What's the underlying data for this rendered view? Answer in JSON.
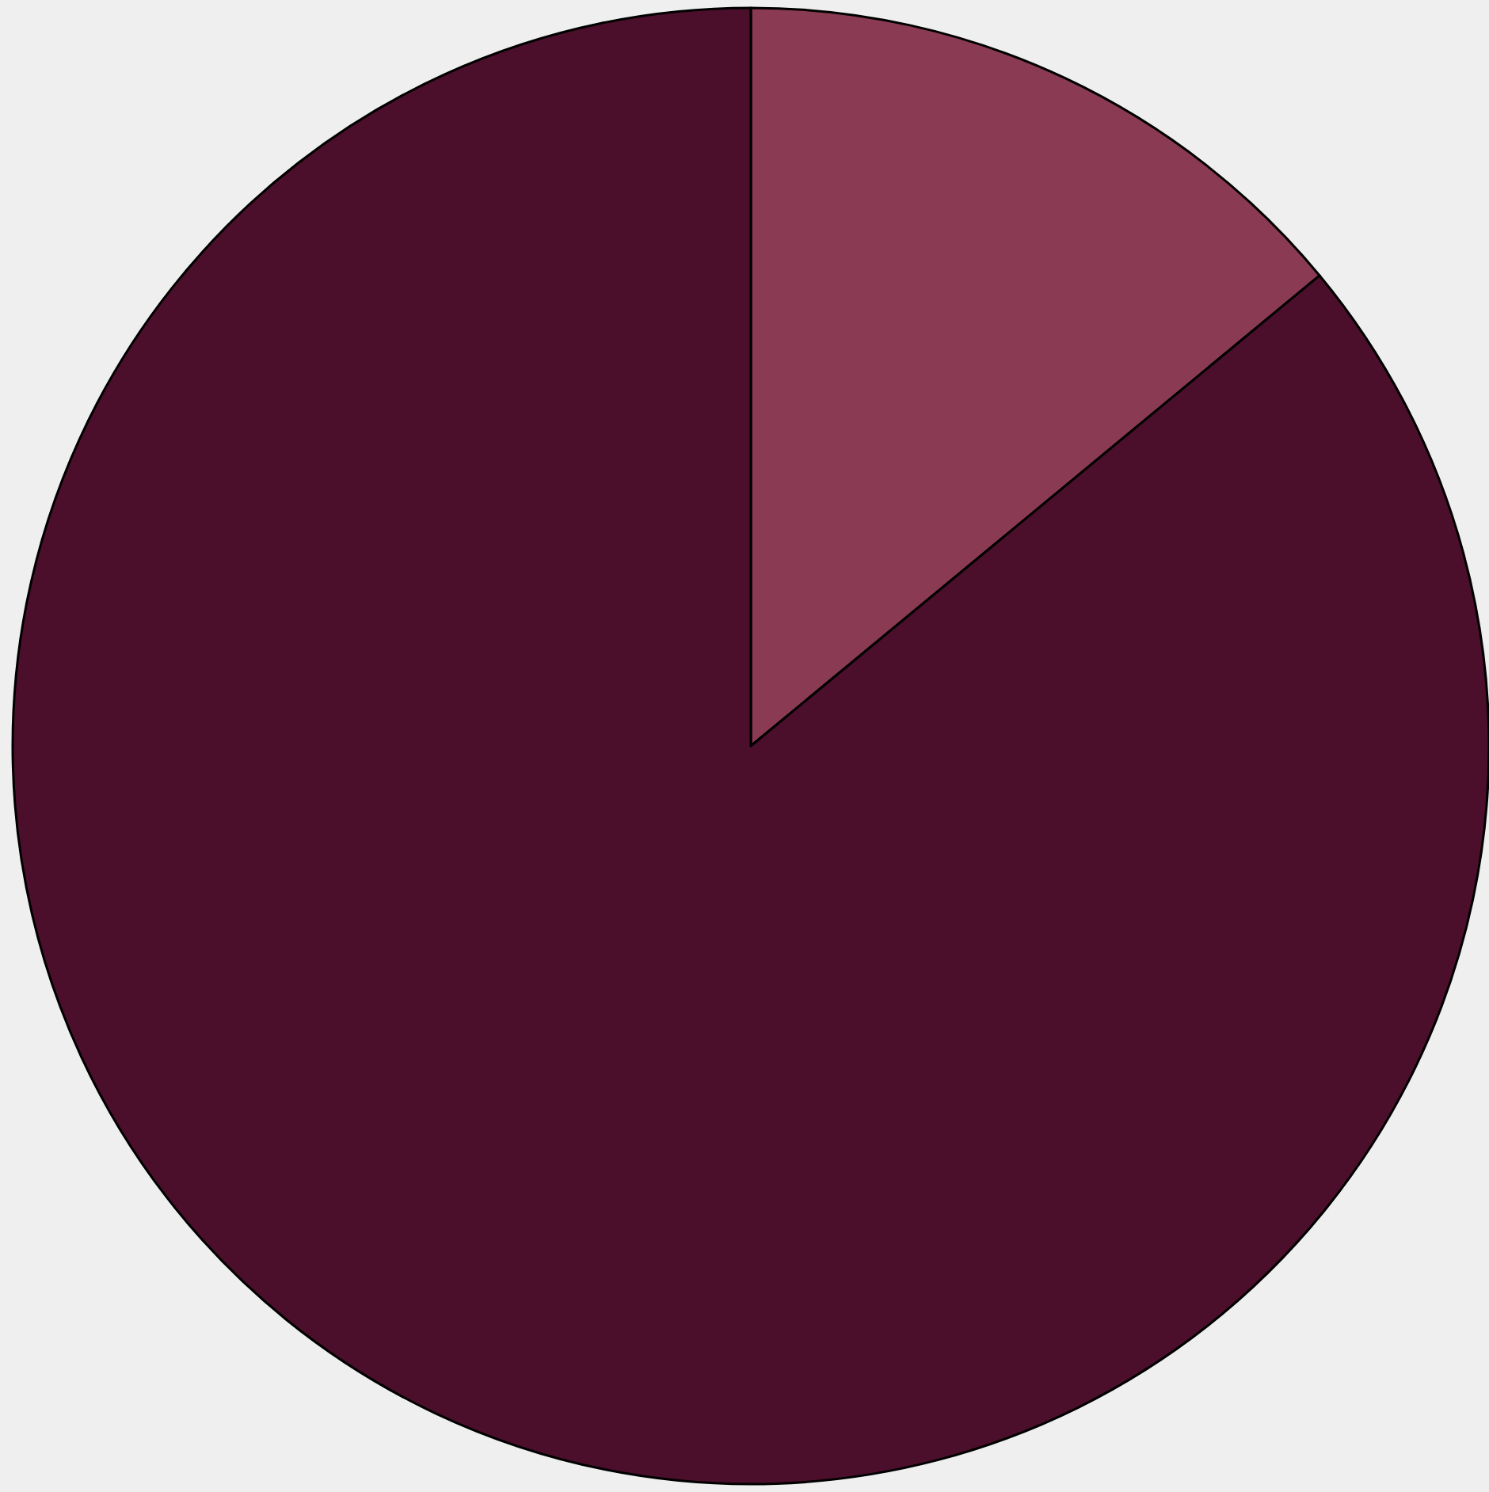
{
  "chart_data": {
    "type": "pie",
    "categories": [
      null,
      null
    ],
    "values": [
      14,
      86
    ],
    "colors": [
      "#8a3a52",
      "#4b0f2b"
    ],
    "legend": false
  }
}
